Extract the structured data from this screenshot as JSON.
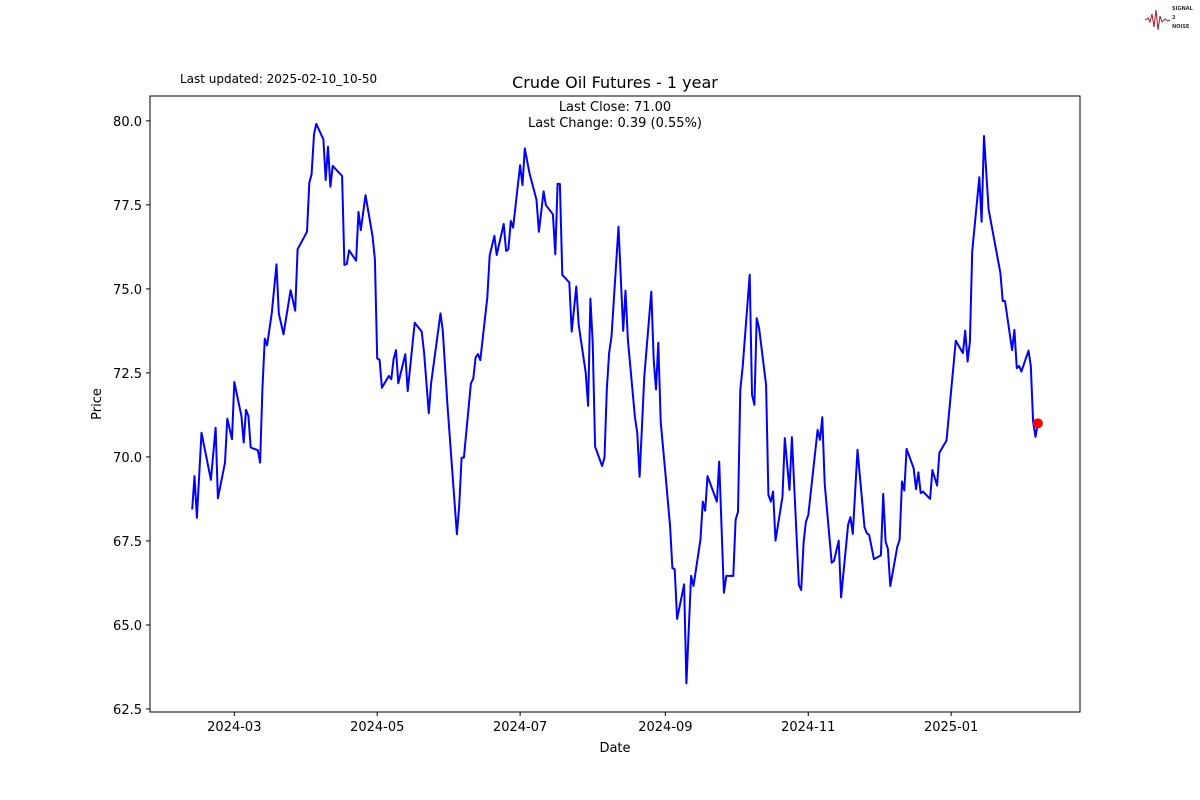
{
  "chart_data": {
    "type": "line",
    "title": "Crude Oil Futures - 1 year",
    "xlabel": "Date",
    "ylabel": "Price",
    "last_updated": "Last updated: 2025-02-10_10-50",
    "annotations": [
      "Last Close: 71.00",
      "Last Change: 0.39 (0.55%)"
    ],
    "logo": "SIGNAL 2 NOISE",
    "xlim": [
      "2024-01-25",
      "2025-02-25"
    ],
    "ylim": [
      62.41,
      80.74
    ],
    "grid": false,
    "line_color": "#0000ff",
    "marker_color": "#ff0000",
    "x_ticks": [
      {
        "date": "2024-03-01",
        "label": "2024-03"
      },
      {
        "date": "2024-05-01",
        "label": "2024-05"
      },
      {
        "date": "2024-07-01",
        "label": "2024-07"
      },
      {
        "date": "2024-09-01",
        "label": "2024-09"
      },
      {
        "date": "2024-11-01",
        "label": "2024-11"
      },
      {
        "date": "2025-01-01",
        "label": "2025-01"
      }
    ],
    "y_ticks": [
      {
        "value": 62.5,
        "label": "62.5"
      },
      {
        "value": 65.0,
        "label": "65.0"
      },
      {
        "value": 67.5,
        "label": "67.5"
      },
      {
        "value": 70.0,
        "label": "70.0"
      },
      {
        "value": 72.5,
        "label": "72.5"
      },
      {
        "value": 75.0,
        "label": "75.0"
      },
      {
        "value": 77.5,
        "label": "77.5"
      },
      {
        "value": 80.0,
        "label": "80.0"
      }
    ],
    "last_point": {
      "date": "2025-02-07",
      "price": 71.0
    },
    "series": [
      {
        "points": [
          [
            "2024-02-12",
            68.44
          ],
          [
            "2024-02-13",
            69.43
          ],
          [
            "2024-02-14",
            68.19
          ],
          [
            "2024-02-16",
            70.72
          ],
          [
            "2024-02-20",
            69.32
          ],
          [
            "2024-02-22",
            70.87
          ],
          [
            "2024-02-23",
            68.77
          ],
          [
            "2024-02-26",
            69.83
          ],
          [
            "2024-02-27",
            71.14
          ],
          [
            "2024-02-29",
            70.53
          ],
          [
            "2024-03-01",
            72.23
          ],
          [
            "2024-03-04",
            71.22
          ],
          [
            "2024-03-05",
            70.43
          ],
          [
            "2024-03-06",
            71.4
          ],
          [
            "2024-03-07",
            71.22
          ],
          [
            "2024-03-08",
            70.28
          ],
          [
            "2024-03-11",
            70.2
          ],
          [
            "2024-03-12",
            69.83
          ],
          [
            "2024-03-13",
            72.01
          ],
          [
            "2024-03-14",
            73.52
          ],
          [
            "2024-03-15",
            73.32
          ],
          [
            "2024-03-17",
            74.29
          ],
          [
            "2024-03-19",
            75.73
          ],
          [
            "2024-03-20",
            74.27
          ],
          [
            "2024-03-22",
            73.65
          ],
          [
            "2024-03-25",
            74.96
          ],
          [
            "2024-03-27",
            74.35
          ],
          [
            "2024-03-28",
            76.18
          ],
          [
            "2024-04-01",
            76.7
          ],
          [
            "2024-04-02",
            78.16
          ],
          [
            "2024-04-03",
            78.41
          ],
          [
            "2024-04-04",
            79.6
          ],
          [
            "2024-04-05",
            79.91
          ],
          [
            "2024-04-08",
            79.45
          ],
          [
            "2024-04-09",
            78.24
          ],
          [
            "2024-04-10",
            79.23
          ],
          [
            "2024-04-11",
            78.04
          ],
          [
            "2024-04-12",
            78.66
          ],
          [
            "2024-04-16",
            78.36
          ],
          [
            "2024-04-17",
            75.71
          ],
          [
            "2024-04-18",
            75.74
          ],
          [
            "2024-04-19",
            76.15
          ],
          [
            "2024-04-22",
            75.84
          ],
          [
            "2024-04-23",
            77.29
          ],
          [
            "2024-04-24",
            76.75
          ],
          [
            "2024-04-26",
            77.79
          ],
          [
            "2024-04-29",
            76.58
          ],
          [
            "2024-04-30",
            75.88
          ],
          [
            "2024-05-01",
            72.93
          ],
          [
            "2024-05-02",
            72.89
          ],
          [
            "2024-05-03",
            72.06
          ],
          [
            "2024-05-06",
            72.41
          ],
          [
            "2024-05-07",
            72.31
          ],
          [
            "2024-05-08",
            72.91
          ],
          [
            "2024-05-09",
            73.18
          ],
          [
            "2024-05-10",
            72.19
          ],
          [
            "2024-05-13",
            73.06
          ],
          [
            "2024-05-14",
            71.96
          ],
          [
            "2024-05-17",
            73.99
          ],
          [
            "2024-05-20",
            73.73
          ],
          [
            "2024-05-21",
            73.1
          ],
          [
            "2024-05-23",
            71.3
          ],
          [
            "2024-05-24",
            72.19
          ],
          [
            "2024-05-28",
            74.27
          ],
          [
            "2024-05-29",
            73.75
          ],
          [
            "2024-05-31",
            71.52
          ],
          [
            "2024-06-04",
            67.7
          ],
          [
            "2024-06-05",
            68.54
          ],
          [
            "2024-06-06",
            69.98
          ],
          [
            "2024-06-07",
            69.98
          ],
          [
            "2024-06-10",
            72.19
          ],
          [
            "2024-06-11",
            72.33
          ],
          [
            "2024-06-12",
            72.96
          ],
          [
            "2024-06-13",
            73.06
          ],
          [
            "2024-06-14",
            72.88
          ],
          [
            "2024-06-17",
            74.74
          ],
          [
            "2024-06-18",
            76.0
          ],
          [
            "2024-06-20",
            76.58
          ],
          [
            "2024-06-21",
            76.01
          ],
          [
            "2024-06-24",
            76.93
          ],
          [
            "2024-06-25",
            76.13
          ],
          [
            "2024-06-26",
            76.18
          ],
          [
            "2024-06-27",
            77.02
          ],
          [
            "2024-06-28",
            76.82
          ],
          [
            "2024-07-01",
            78.68
          ],
          [
            "2024-07-02",
            78.09
          ],
          [
            "2024-07-03",
            79.18
          ],
          [
            "2024-07-05",
            78.44
          ],
          [
            "2024-07-08",
            77.65
          ],
          [
            "2024-07-09",
            76.7
          ],
          [
            "2024-07-11",
            77.9
          ],
          [
            "2024-07-12",
            77.49
          ],
          [
            "2024-07-15",
            77.22
          ],
          [
            "2024-07-16",
            76.03
          ],
          [
            "2024-07-17",
            78.13
          ],
          [
            "2024-07-18",
            78.12
          ],
          [
            "2024-07-19",
            75.42
          ],
          [
            "2024-07-22",
            75.19
          ],
          [
            "2024-07-23",
            73.73
          ],
          [
            "2024-07-25",
            75.07
          ],
          [
            "2024-07-26",
            73.93
          ],
          [
            "2024-07-29",
            72.51
          ],
          [
            "2024-07-30",
            71.52
          ],
          [
            "2024-07-31",
            74.71
          ],
          [
            "2024-08-01",
            73.4
          ],
          [
            "2024-08-02",
            70.31
          ],
          [
            "2024-08-05",
            69.73
          ],
          [
            "2024-08-06",
            69.98
          ],
          [
            "2024-08-07",
            72.0
          ],
          [
            "2024-08-08",
            73.09
          ],
          [
            "2024-08-09",
            73.58
          ],
          [
            "2024-08-12",
            76.85
          ],
          [
            "2024-08-14",
            73.75
          ],
          [
            "2024-08-15",
            74.95
          ],
          [
            "2024-08-16",
            73.48
          ],
          [
            "2024-08-19",
            71.2
          ],
          [
            "2024-08-20",
            70.7
          ],
          [
            "2024-08-21",
            69.41
          ],
          [
            "2024-08-23",
            72.39
          ],
          [
            "2024-08-26",
            74.92
          ],
          [
            "2024-08-27",
            72.89
          ],
          [
            "2024-08-28",
            72.01
          ],
          [
            "2024-08-29",
            73.4
          ],
          [
            "2024-08-30",
            71.05
          ],
          [
            "2024-09-01",
            69.51
          ],
          [
            "2024-09-03",
            67.93
          ],
          [
            "2024-09-04",
            66.69
          ],
          [
            "2024-09-05",
            66.66
          ],
          [
            "2024-09-06",
            65.18
          ],
          [
            "2024-09-09",
            66.21
          ],
          [
            "2024-09-10",
            63.26
          ],
          [
            "2024-09-12",
            66.46
          ],
          [
            "2024-09-13",
            66.16
          ],
          [
            "2024-09-16",
            67.55
          ],
          [
            "2024-09-17",
            68.67
          ],
          [
            "2024-09-18",
            68.4
          ],
          [
            "2024-09-19",
            69.43
          ],
          [
            "2024-09-23",
            68.67
          ],
          [
            "2024-09-24",
            69.86
          ],
          [
            "2024-09-26",
            65.96
          ],
          [
            "2024-09-27",
            66.46
          ],
          [
            "2024-09-30",
            66.46
          ],
          [
            "2024-10-01",
            68.13
          ],
          [
            "2024-10-02",
            68.37
          ],
          [
            "2024-10-03",
            72.0
          ],
          [
            "2024-10-04",
            72.69
          ],
          [
            "2024-10-07",
            75.42
          ],
          [
            "2024-10-08",
            71.85
          ],
          [
            "2024-10-09",
            71.55
          ],
          [
            "2024-10-10",
            74.13
          ],
          [
            "2024-10-11",
            73.83
          ],
          [
            "2024-10-14",
            72.14
          ],
          [
            "2024-10-15",
            68.87
          ],
          [
            "2024-10-16",
            68.67
          ],
          [
            "2024-10-17",
            68.97
          ],
          [
            "2024-10-18",
            67.51
          ],
          [
            "2024-10-21",
            68.82
          ],
          [
            "2024-10-22",
            70.56
          ],
          [
            "2024-10-24",
            69.02
          ],
          [
            "2024-10-25",
            70.59
          ],
          [
            "2024-10-28",
            66.19
          ],
          [
            "2024-10-29",
            66.04
          ],
          [
            "2024-10-30",
            67.45
          ],
          [
            "2024-10-31",
            68.07
          ],
          [
            "2024-11-01",
            68.27
          ],
          [
            "2024-11-05",
            70.8
          ],
          [
            "2024-11-06",
            70.51
          ],
          [
            "2024-11-07",
            71.18
          ],
          [
            "2024-11-08",
            69.2
          ],
          [
            "2024-11-11",
            66.85
          ],
          [
            "2024-11-12",
            66.91
          ],
          [
            "2024-11-14",
            67.51
          ],
          [
            "2024-11-15",
            65.82
          ],
          [
            "2024-11-18",
            67.98
          ],
          [
            "2024-11-19",
            68.21
          ],
          [
            "2024-11-20",
            67.71
          ],
          [
            "2024-11-22",
            70.21
          ],
          [
            "2024-11-25",
            67.91
          ],
          [
            "2024-11-26",
            67.73
          ],
          [
            "2024-11-27",
            67.68
          ],
          [
            "2024-11-29",
            66.96
          ],
          [
            "2024-12-02",
            67.07
          ],
          [
            "2024-12-03",
            68.9
          ],
          [
            "2024-12-04",
            67.48
          ],
          [
            "2024-12-05",
            67.26
          ],
          [
            "2024-12-06",
            66.16
          ],
          [
            "2024-12-09",
            67.33
          ],
          [
            "2024-12-10",
            67.53
          ],
          [
            "2024-12-11",
            69.27
          ],
          [
            "2024-12-12",
            69.0
          ],
          [
            "2024-12-13",
            70.24
          ],
          [
            "2024-12-16",
            69.66
          ],
          [
            "2024-12-17",
            69.04
          ],
          [
            "2024-12-18",
            69.54
          ],
          [
            "2024-12-19",
            68.92
          ],
          [
            "2024-12-20",
            68.97
          ],
          [
            "2024-12-23",
            68.75
          ],
          [
            "2024-12-24",
            69.61
          ],
          [
            "2024-12-26",
            69.15
          ],
          [
            "2024-12-27",
            70.13
          ],
          [
            "2024-12-30",
            70.49
          ],
          [
            "2025-01-03",
            73.46
          ],
          [
            "2025-01-06",
            73.09
          ],
          [
            "2025-01-07",
            73.76
          ],
          [
            "2025-01-08",
            72.84
          ],
          [
            "2025-01-09",
            73.43
          ],
          [
            "2025-01-10",
            76.11
          ],
          [
            "2025-01-13",
            78.32
          ],
          [
            "2025-01-14",
            77.0
          ],
          [
            "2025-01-15",
            79.55
          ],
          [
            "2025-01-17",
            77.37
          ],
          [
            "2025-01-22",
            75.47
          ],
          [
            "2025-01-23",
            74.64
          ],
          [
            "2025-01-24",
            74.64
          ],
          [
            "2025-01-27",
            73.18
          ],
          [
            "2025-01-28",
            73.78
          ],
          [
            "2025-01-29",
            72.64
          ],
          [
            "2025-01-30",
            72.71
          ],
          [
            "2025-01-31",
            72.54
          ],
          [
            "2025-02-03",
            73.16
          ],
          [
            "2025-02-04",
            72.71
          ],
          [
            "2025-02-05",
            71.05
          ],
          [
            "2025-02-06",
            70.6
          ],
          [
            "2025-02-07",
            71.0
          ]
        ]
      }
    ]
  }
}
